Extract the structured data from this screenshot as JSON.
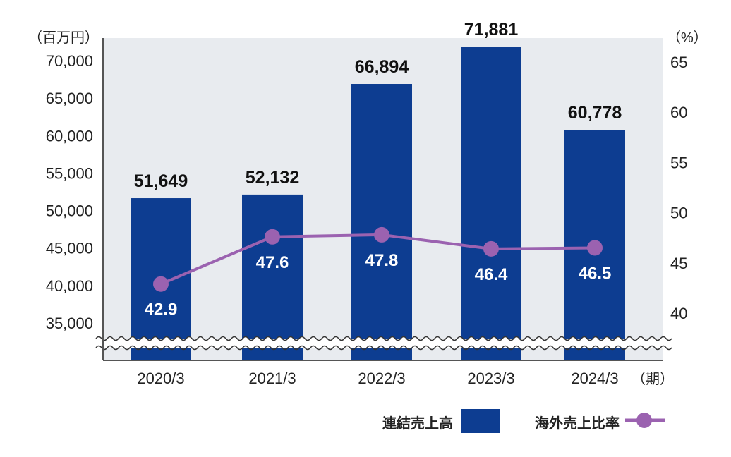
{
  "chart_data": {
    "type": "bar+line",
    "categories": [
      "2020/3",
      "2021/3",
      "2022/3",
      "2023/3",
      "2024/3"
    ],
    "x_unit": "（期）",
    "series": [
      {
        "name": "連結売上高",
        "type": "bar",
        "axis": "left",
        "values": [
          51649,
          52132,
          66894,
          71881,
          60778
        ],
        "labels": [
          "51,649",
          "52,132",
          "66,894",
          "71,881",
          "60,778"
        ],
        "color": "#0d3d91"
      },
      {
        "name": "海外売上比率",
        "type": "line",
        "axis": "right",
        "values": [
          42.9,
          47.6,
          47.8,
          46.4,
          46.5
        ],
        "labels": [
          "42.9",
          "47.6",
          "47.8",
          "46.4",
          "46.5"
        ],
        "color": "#9b62b0"
      }
    ],
    "left_axis": {
      "unit": "（百万円）",
      "ticks": [
        "70,000",
        "65,000",
        "60,000",
        "55,000",
        "50,000",
        "45,000",
        "40,000",
        "35,000"
      ],
      "tick_values": [
        70000,
        65000,
        60000,
        55000,
        50000,
        45000,
        40000,
        35000
      ],
      "broken": true
    },
    "right_axis": {
      "unit": "（%）",
      "ticks": [
        "65",
        "60",
        "55",
        "50",
        "45",
        "40"
      ],
      "tick_values": [
        65,
        60,
        55,
        50,
        45,
        40
      ]
    },
    "legend_position": "bottom-right",
    "plot_background": "#e8ebef",
    "grid": false
  }
}
